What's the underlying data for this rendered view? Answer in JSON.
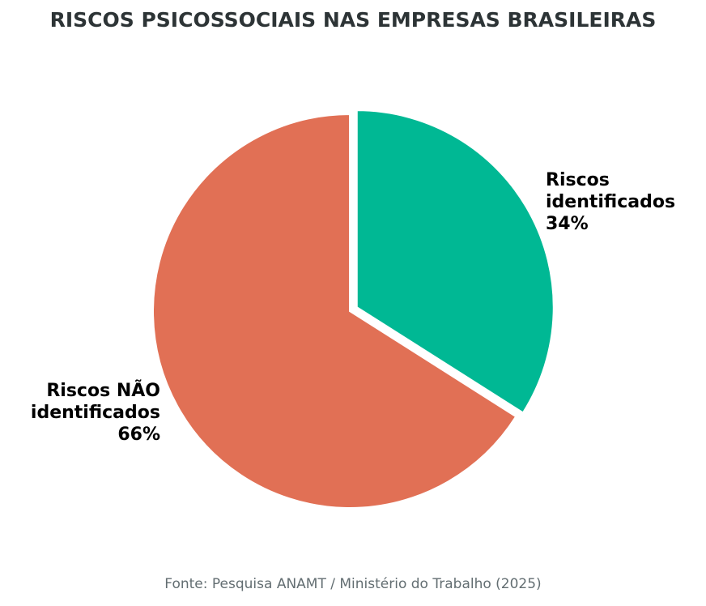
{
  "chart_data": {
    "type": "pie",
    "title": "RISCOS PSICOSSOCIAIS NAS EMPRESAS BRASILEIRAS",
    "slices": [
      {
        "label": "Riscos identificados",
        "value": 34,
        "display": "34%",
        "color": "#00b894",
        "exploded": true
      },
      {
        "label": "Riscos NÃO identificados",
        "value": 66,
        "display": "66%",
        "color": "#e17055",
        "exploded": false
      }
    ],
    "start_angle_deg": 90,
    "direction": "clockwise"
  },
  "source": "Fonte: Pesquisa ANAMT / Ministério do Trabalho (2025)",
  "labels": {
    "s0": [
      "Riscos",
      "identificados",
      "34%"
    ],
    "s1": [
      "Riscos NÃO",
      "identificados",
      "66%"
    ]
  }
}
